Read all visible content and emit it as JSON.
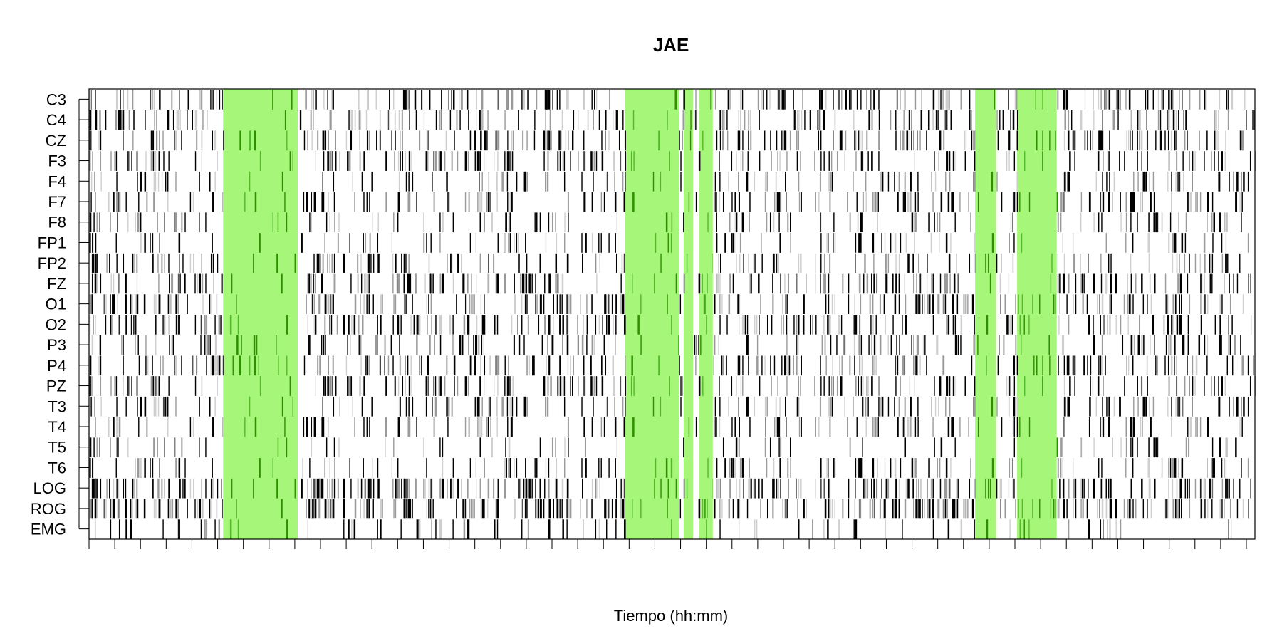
{
  "chart_data": {
    "type": "heatmap",
    "title": "JAE",
    "xlabel": "Tiempo (hh:mm)",
    "ylabel": "",
    "channels": [
      "C3",
      "C4",
      "CZ",
      "F3",
      "F4",
      "F7",
      "F8",
      "FP1",
      "FP2",
      "FZ",
      "O1",
      "O2",
      "P3",
      "P4",
      "PZ",
      "T3",
      "T4",
      "T5",
      "T6",
      "LOG",
      "ROG",
      "EMG"
    ],
    "xlim": [
      0,
      100
    ],
    "x_tick_count": 46,
    "x_tick_labels": [],
    "highlight_color": "#a6f67a",
    "mark_colors": [
      "#000000",
      "#9a9a9a",
      "#cfcfcf"
    ],
    "highlight_intervals": [
      [
        11.5,
        17.9
      ],
      [
        46.0,
        50.6
      ],
      [
        51.0,
        51.8
      ],
      [
        52.3,
        53.5
      ],
      [
        76.0,
        77.8
      ],
      [
        79.6,
        83.0
      ]
    ],
    "channel_activity": [
      0.55,
      0.5,
      0.6,
      0.5,
      0.35,
      0.45,
      0.35,
      0.3,
      0.4,
      0.6,
      0.6,
      0.55,
      0.5,
      0.6,
      0.55,
      0.45,
      0.35,
      0.25,
      0.4,
      0.85,
      0.85,
      0.25
    ],
    "grid": false,
    "legend": "none"
  }
}
